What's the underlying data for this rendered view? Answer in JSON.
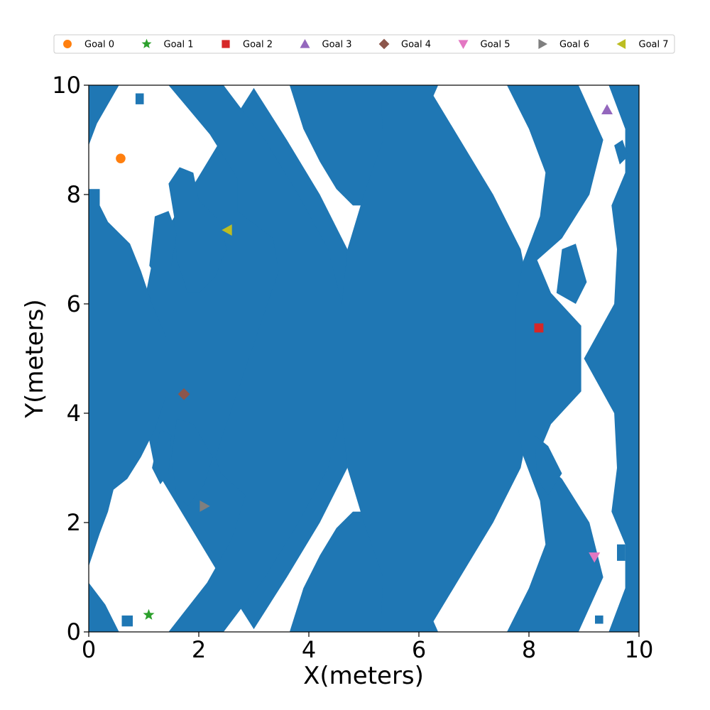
{
  "chart_data": {
    "type": "scatter",
    "title": "",
    "xlabel": "X(meters)",
    "ylabel": "Y(meters)",
    "xlim": [
      0,
      10
    ],
    "ylim": [
      0,
      10
    ],
    "xticks": [
      0,
      2,
      4,
      6,
      8,
      10
    ],
    "yticks": [
      0,
      2,
      4,
      6,
      8,
      10
    ],
    "grid": false,
    "legend_position": "top",
    "background": {
      "free_space_color": "#ffffff",
      "obstacle_color": "#1f77b4",
      "obstacle_polygons": [
        [
          [
            3.0,
            9.95
          ],
          [
            3.6,
            9.0
          ],
          [
            4.2,
            8.0
          ],
          [
            4.7,
            7.0
          ],
          [
            4.85,
            6.0
          ],
          [
            4.85,
            5.0
          ],
          [
            4.85,
            4.0
          ],
          [
            4.7,
            3.0
          ],
          [
            4.2,
            2.0
          ],
          [
            3.6,
            1.0
          ],
          [
            3.0,
            0.05
          ],
          [
            2.4,
            1.0
          ],
          [
            1.8,
            2.0
          ],
          [
            1.2,
            3.0
          ],
          [
            1.0,
            4.0
          ],
          [
            1.0,
            5.0
          ],
          [
            1.0,
            6.0
          ],
          [
            1.2,
            7.0
          ],
          [
            1.8,
            8.0
          ],
          [
            2.4,
            9.0
          ]
        ],
        [
          [
            1.45,
            10
          ],
          [
            2.45,
            10
          ],
          [
            3.2,
            9.0
          ],
          [
            3.75,
            8.1
          ],
          [
            4.35,
            7.0
          ],
          [
            4.6,
            6.0
          ],
          [
            4.6,
            5.0
          ],
          [
            4.6,
            4.0
          ],
          [
            4.35,
            3.0
          ],
          [
            3.75,
            1.9
          ],
          [
            3.2,
            1.0
          ],
          [
            2.45,
            0
          ],
          [
            1.45,
            0
          ],
          [
            2.15,
            0.9
          ],
          [
            2.6,
            1.7
          ],
          [
            2.85,
            2.5
          ],
          [
            2.4,
            2.9
          ],
          [
            2.3,
            3.2
          ],
          [
            3.45,
            6.6
          ],
          [
            3.35,
            7.2
          ],
          [
            2.7,
            7.7
          ],
          [
            2.7,
            8.3
          ],
          [
            2.2,
            9.1
          ]
        ],
        [
          [
            3.65,
            10
          ],
          [
            3.9,
            9.2
          ],
          [
            4.2,
            8.6
          ],
          [
            4.5,
            8.1
          ],
          [
            4.8,
            7.8
          ],
          [
            5.1,
            7.8
          ],
          [
            5.4,
            8.1
          ],
          [
            5.7,
            8.6
          ],
          [
            6.0,
            9.2
          ],
          [
            6.35,
            10
          ]
        ],
        [
          [
            3.65,
            0
          ],
          [
            3.9,
            0.8
          ],
          [
            4.2,
            1.4
          ],
          [
            4.5,
            1.9
          ],
          [
            4.8,
            2.2
          ],
          [
            5.1,
            2.2
          ],
          [
            5.4,
            1.9
          ],
          [
            5.7,
            1.4
          ],
          [
            6.0,
            0.8
          ],
          [
            6.35,
            0
          ]
        ],
        [
          [
            6.15,
            10
          ],
          [
            6.75,
            9.0
          ],
          [
            7.35,
            8.0
          ],
          [
            7.85,
            7.0
          ],
          [
            8.05,
            6.0
          ],
          [
            8.05,
            5.0
          ],
          [
            8.05,
            4.0
          ],
          [
            7.85,
            3.0
          ],
          [
            7.35,
            2.0
          ],
          [
            6.75,
            1.0
          ],
          [
            6.15,
            0
          ],
          [
            5.3,
            0
          ],
          [
            5.35,
            1.0
          ],
          [
            5.0,
            2.0
          ],
          [
            4.7,
            3.0
          ],
          [
            4.6,
            4.0
          ],
          [
            4.6,
            5.0
          ],
          [
            4.6,
            6.0
          ],
          [
            4.7,
            7.0
          ],
          [
            5.0,
            8.0
          ],
          [
            5.35,
            9.0
          ],
          [
            5.3,
            10
          ]
        ],
        [
          [
            7.6,
            10
          ],
          [
            8.9,
            10
          ],
          [
            9.35,
            9.0
          ],
          [
            9.1,
            8.0
          ],
          [
            8.6,
            7.2
          ],
          [
            8.15,
            6.8
          ],
          [
            8.4,
            6.2
          ],
          [
            8.95,
            5.6
          ],
          [
            8.95,
            4.4
          ],
          [
            8.4,
            3.8
          ],
          [
            8.15,
            3.2
          ],
          [
            8.6,
            2.8
          ],
          [
            9.1,
            2.0
          ],
          [
            9.35,
            1.0
          ],
          [
            8.9,
            0
          ],
          [
            7.6,
            0
          ],
          [
            8.0,
            0.8
          ],
          [
            8.3,
            1.6
          ],
          [
            8.2,
            2.4
          ],
          [
            7.9,
            3.2
          ],
          [
            7.75,
            4.0
          ],
          [
            7.75,
            6.0
          ],
          [
            7.9,
            6.8
          ],
          [
            8.2,
            7.6
          ],
          [
            8.3,
            8.4
          ],
          [
            8.0,
            9.2
          ]
        ],
        [
          [
            9.45,
            10
          ],
          [
            10,
            10
          ],
          [
            10,
            0
          ],
          [
            9.45,
            0
          ],
          [
            9.75,
            0.8
          ],
          [
            9.75,
            1.6
          ],
          [
            9.5,
            2.2
          ],
          [
            9.6,
            3.0
          ],
          [
            9.55,
            4.0
          ],
          [
            9.0,
            5.0
          ],
          [
            9.55,
            6.0
          ],
          [
            9.6,
            7.0
          ],
          [
            9.5,
            7.8
          ],
          [
            9.75,
            8.4
          ],
          [
            9.75,
            9.2
          ]
        ],
        [
          [
            0,
            10
          ],
          [
            0.55,
            10
          ],
          [
            0.15,
            9.3
          ],
          [
            0,
            8.9
          ]
        ],
        [
          [
            0,
            8.1
          ],
          [
            0.2,
            8.1
          ],
          [
            0.2,
            7.8
          ],
          [
            0.35,
            7.5
          ],
          [
            0.55,
            7.3
          ],
          [
            0.75,
            7.1
          ],
          [
            0.95,
            6.6
          ],
          [
            1.15,
            6.0
          ],
          [
            1.4,
            5.4
          ],
          [
            1.4,
            4.3
          ],
          [
            1.2,
            3.7
          ],
          [
            0.95,
            3.2
          ],
          [
            0.7,
            2.8
          ],
          [
            0.45,
            2.6
          ],
          [
            0.35,
            2.2
          ],
          [
            0.2,
            1.8
          ],
          [
            0,
            1.2
          ]
        ],
        [
          [
            0,
            0.9
          ],
          [
            0.3,
            0.5
          ],
          [
            0.55,
            0
          ],
          [
            0,
            0
          ]
        ],
        [
          [
            1.45,
            8.2
          ],
          [
            1.65,
            8.5
          ],
          [
            1.9,
            8.4
          ],
          [
            2.0,
            7.9
          ],
          [
            2.4,
            7.5
          ],
          [
            2.5,
            7.0
          ],
          [
            2.3,
            6.5
          ],
          [
            2.0,
            6.2
          ],
          [
            1.8,
            6.2
          ],
          [
            1.6,
            6.8
          ],
          [
            1.55,
            7.6
          ]
        ],
        [
          [
            1.2,
            7.6
          ],
          [
            1.45,
            7.7
          ],
          [
            1.6,
            7.3
          ],
          [
            1.5,
            6.7
          ],
          [
            1.3,
            6.4
          ],
          [
            1.1,
            6.7
          ]
        ],
        [
          [
            1.6,
            3.9
          ],
          [
            1.9,
            3.8
          ],
          [
            2.25,
            3.2
          ],
          [
            2.1,
            2.7
          ],
          [
            1.8,
            2.3
          ],
          [
            1.6,
            2.5
          ],
          [
            1.5,
            3.2
          ]
        ],
        [
          [
            1.3,
            3.7
          ],
          [
            1.5,
            3.6
          ],
          [
            1.45,
            2.9
          ],
          [
            1.3,
            2.7
          ],
          [
            1.15,
            3.0
          ]
        ],
        [
          [
            8.6,
            7.0
          ],
          [
            8.85,
            7.1
          ],
          [
            9.05,
            6.4
          ],
          [
            8.85,
            6.0
          ],
          [
            8.5,
            6.2
          ]
        ],
        [
          [
            8.1,
            3.6
          ],
          [
            8.35,
            3.4
          ],
          [
            8.6,
            2.9
          ],
          [
            8.35,
            2.5
          ],
          [
            8.15,
            2.8
          ]
        ],
        [
          [
            0.85,
            9.85
          ],
          [
            1.0,
            9.85
          ],
          [
            1.0,
            9.65
          ],
          [
            0.85,
            9.65
          ]
        ],
        [
          [
            0.6,
            0.1
          ],
          [
            0.8,
            0.1
          ],
          [
            0.8,
            0.3
          ],
          [
            0.6,
            0.3
          ]
        ],
        [
          [
            9.2,
            0.15
          ],
          [
            9.35,
            0.15
          ],
          [
            9.35,
            0.3
          ],
          [
            9.2,
            0.3
          ]
        ],
        [
          [
            9.55,
            8.9
          ],
          [
            9.7,
            9.0
          ],
          [
            9.8,
            8.7
          ],
          [
            9.65,
            8.55
          ]
        ],
        [
          [
            9.6,
            1.6
          ],
          [
            9.75,
            1.6
          ],
          [
            9.75,
            1.3
          ],
          [
            9.6,
            1.3
          ]
        ]
      ]
    },
    "series": [
      {
        "name": "Goal 0",
        "marker": "circle",
        "color": "#ff7f0e",
        "x": 0.58,
        "y": 8.66
      },
      {
        "name": "Goal 1",
        "marker": "star",
        "color": "#2ca02c",
        "x": 1.09,
        "y": 0.31
      },
      {
        "name": "Goal 2",
        "marker": "square",
        "color": "#d62728",
        "x": 8.18,
        "y": 5.56
      },
      {
        "name": "Goal 3",
        "marker": "triangle-up",
        "color": "#9467bd",
        "x": 9.42,
        "y": 9.55
      },
      {
        "name": "Goal 4",
        "marker": "diamond",
        "color": "#8c564b",
        "x": 1.73,
        "y": 4.35
      },
      {
        "name": "Goal 5",
        "marker": "triangle-down",
        "color": "#e377c2",
        "x": 9.19,
        "y": 1.37
      },
      {
        "name": "Goal 6",
        "marker": "triangle-right",
        "color": "#7f7f7f",
        "x": 2.1,
        "y": 2.3
      },
      {
        "name": "Goal 7",
        "marker": "triangle-left",
        "color": "#bcbd22",
        "x": 2.52,
        "y": 7.35
      }
    ]
  }
}
